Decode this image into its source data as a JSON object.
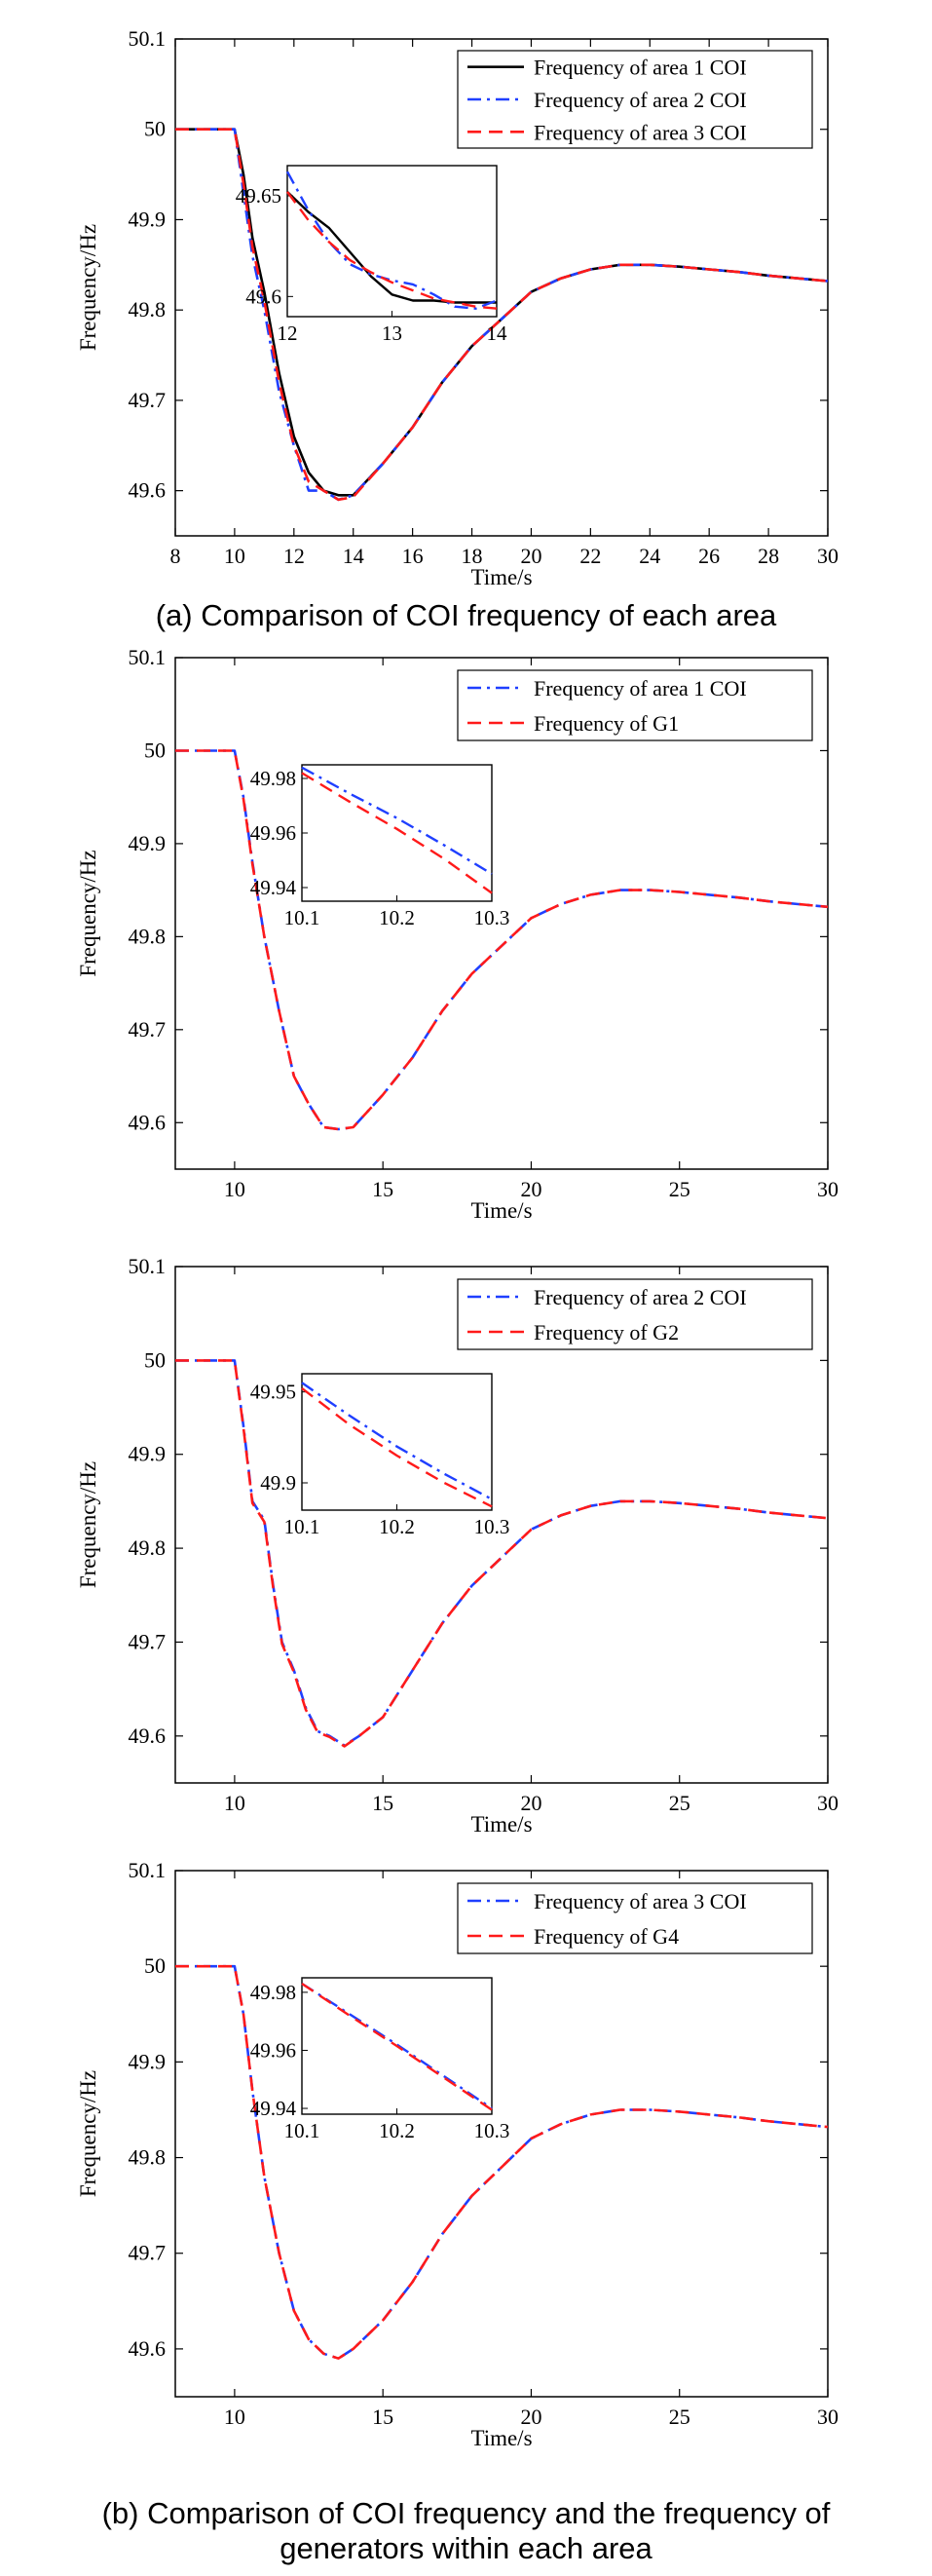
{
  "captions": {
    "a": "(a) Comparison of COI frequency of each area",
    "b_line1": "(b) Comparison of COI frequency and the frequency of",
    "b_line2": "generators within each area"
  },
  "chart_data": [
    {
      "type": "line",
      "xlabel": "Time/s",
      "ylabel": "Frequency/Hz",
      "xlim": [
        8,
        30
      ],
      "ylim": [
        49.55,
        50.1
      ],
      "xticks": [
        8,
        10,
        12,
        14,
        16,
        18,
        20,
        22,
        24,
        26,
        28,
        30
      ],
      "yticks": [
        49.6,
        49.7,
        49.8,
        49.9,
        50,
        50.1
      ],
      "legend_position": "top-right",
      "series": [
        {
          "name": "Frequency of area 1 COI",
          "color": "#000000",
          "style": "solid",
          "x": [
            8,
            10,
            10.3,
            10.6,
            11,
            11.5,
            12,
            12.5,
            13,
            13.5,
            14,
            15,
            16,
            17,
            18,
            19,
            20,
            21,
            22,
            23,
            24,
            25,
            26,
            27,
            28,
            29,
            30
          ],
          "y": [
            50.0,
            50.0,
            49.95,
            49.88,
            49.82,
            49.73,
            49.66,
            49.62,
            49.6,
            49.595,
            49.595,
            49.63,
            49.67,
            49.72,
            49.76,
            49.79,
            49.82,
            49.835,
            49.845,
            49.85,
            49.85,
            49.848,
            49.845,
            49.842,
            49.838,
            49.835,
            49.832
          ]
        },
        {
          "name": "Frequency of area 2 COI",
          "color": "#1f3fff",
          "style": "dashdot",
          "x": [
            8,
            10,
            10.3,
            10.6,
            11,
            11.5,
            12,
            12.5,
            13,
            13.5,
            14,
            15,
            16,
            17,
            18,
            19,
            20,
            21,
            22,
            23,
            24,
            25,
            26,
            27,
            28,
            29,
            30
          ],
          "y": [
            50.0,
            50.0,
            49.93,
            49.86,
            49.8,
            49.71,
            49.65,
            49.6,
            49.6,
            49.59,
            49.595,
            49.63,
            49.67,
            49.72,
            49.76,
            49.79,
            49.82,
            49.835,
            49.845,
            49.85,
            49.85,
            49.848,
            49.845,
            49.842,
            49.838,
            49.835,
            49.832
          ]
        },
        {
          "name": "Frequency of area 3 COI",
          "color": "#ff1a1a",
          "style": "dashed",
          "x": [
            8,
            10,
            10.3,
            10.6,
            11,
            11.5,
            12,
            12.5,
            13,
            13.5,
            14,
            15,
            16,
            17,
            18,
            19,
            20,
            21,
            22,
            23,
            24,
            25,
            26,
            27,
            28,
            29,
            30
          ],
          "y": [
            50.0,
            50.0,
            49.94,
            49.87,
            49.81,
            49.72,
            49.65,
            49.61,
            49.6,
            49.59,
            49.593,
            49.63,
            49.67,
            49.72,
            49.76,
            49.79,
            49.82,
            49.835,
            49.845,
            49.85,
            49.85,
            49.848,
            49.845,
            49.842,
            49.838,
            49.835,
            49.832
          ]
        }
      ],
      "inset": {
        "xlim": [
          12,
          14
        ],
        "ylim": [
          49.59,
          49.665
        ],
        "xticks": [
          12,
          13,
          14
        ],
        "yticks": [
          49.6,
          49.65
        ],
        "series": [
          {
            "x": [
              12,
              12.2,
              12.4,
              12.6,
              12.8,
              13.0,
              13.2,
              13.4,
              13.6,
              13.8,
              14.0
            ],
            "y": [
              49.652,
              49.642,
              49.634,
              49.622,
              49.61,
              49.601,
              49.598,
              49.598,
              49.597,
              49.597,
              49.597
            ]
          },
          {
            "x": [
              12,
              12.2,
              12.4,
              12.6,
              12.8,
              13.0,
              13.2,
              13.4,
              13.6,
              13.8,
              14.0
            ],
            "y": [
              49.662,
              49.643,
              49.627,
              49.616,
              49.611,
              49.608,
              49.606,
              49.601,
              49.595,
              49.594,
              49.598
            ]
          },
          {
            "x": [
              12,
              12.2,
              12.4,
              12.6,
              12.8,
              13.0,
              13.2,
              13.4,
              13.6,
              13.8,
              14.0
            ],
            "y": [
              49.652,
              49.638,
              49.627,
              49.618,
              49.612,
              49.607,
              49.603,
              49.599,
              49.597,
              49.595,
              49.594
            ]
          }
        ]
      }
    },
    {
      "type": "line",
      "xlabel": "Time/s",
      "ylabel": "Frequency/Hz",
      "xlim": [
        8,
        30
      ],
      "ylim": [
        49.55,
        50.1
      ],
      "xticks": [
        10,
        15,
        20,
        25,
        30
      ],
      "yticks": [
        49.6,
        49.7,
        49.8,
        49.9,
        50,
        50.1
      ],
      "legend_position": "top-right",
      "series": [
        {
          "name": "Frequency of area 1 COI",
          "color": "#1f3fff",
          "style": "dashdot",
          "x": [
            8,
            10,
            10.3,
            10.6,
            11,
            11.5,
            12,
            12.5,
            13,
            13.5,
            14,
            15,
            16,
            17,
            18,
            19,
            20,
            21,
            22,
            23,
            24,
            25,
            26,
            27,
            28,
            29,
            30
          ],
          "y": [
            50.0,
            50.0,
            49.95,
            49.88,
            49.8,
            49.72,
            49.65,
            49.62,
            49.595,
            49.593,
            49.595,
            49.63,
            49.67,
            49.72,
            49.76,
            49.79,
            49.82,
            49.835,
            49.845,
            49.85,
            49.85,
            49.848,
            49.845,
            49.842,
            49.838,
            49.835,
            49.832
          ]
        },
        {
          "name": "Frequency of G1",
          "color": "#ff1a1a",
          "style": "dashed",
          "x": [
            8,
            10,
            10.3,
            10.6,
            11,
            11.5,
            12,
            12.5,
            13,
            13.5,
            14,
            15,
            16,
            17,
            18,
            19,
            20,
            21,
            22,
            23,
            24,
            25,
            26,
            27,
            28,
            29,
            30
          ],
          "y": [
            50.0,
            50.0,
            49.948,
            49.878,
            49.8,
            49.72,
            49.65,
            49.62,
            49.595,
            49.593,
            49.595,
            49.63,
            49.67,
            49.72,
            49.76,
            49.79,
            49.82,
            49.835,
            49.845,
            49.85,
            49.85,
            49.848,
            49.845,
            49.842,
            49.838,
            49.835,
            49.832
          ]
        }
      ],
      "inset": {
        "xlim": [
          10.1,
          10.3
        ],
        "ylim": [
          49.935,
          49.985
        ],
        "xticks": [
          10.1,
          10.2,
          10.3
        ],
        "yticks": [
          49.94,
          49.96,
          49.98
        ],
        "series": [
          {
            "x": [
              10.1,
              10.15,
              10.2,
              10.25,
              10.3
            ],
            "y": [
              49.984,
              49.9745,
              49.9655,
              49.9555,
              49.945
            ]
          },
          {
            "x": [
              10.1,
              10.15,
              10.2,
              10.25,
              10.3
            ],
            "y": [
              49.982,
              49.9715,
              49.9615,
              49.9505,
              49.938
            ]
          }
        ]
      }
    },
    {
      "type": "line",
      "xlabel": "Time/s",
      "ylabel": "Frequency/Hz",
      "xlim": [
        8,
        30
      ],
      "ylim": [
        49.55,
        50.1
      ],
      "xticks": [
        10,
        15,
        20,
        25,
        30
      ],
      "yticks": [
        49.6,
        49.7,
        49.8,
        49.9,
        50,
        50.1
      ],
      "legend_position": "top-right",
      "series": [
        {
          "name": "Frequency of area 2 COI",
          "color": "#1f3fff",
          "style": "dashdot",
          "x": [
            8,
            10,
            10.3,
            10.6,
            11,
            11.3,
            11.6,
            12,
            12.4,
            12.8,
            13.2,
            13.7,
            14.2,
            15,
            16,
            17,
            18,
            19,
            20,
            21,
            22,
            23,
            24,
            25,
            26,
            27,
            28,
            29,
            30
          ],
          "y": [
            50.0,
            50.0,
            49.93,
            49.85,
            49.83,
            49.76,
            49.7,
            49.67,
            49.63,
            49.605,
            49.6,
            49.59,
            49.6,
            49.62,
            49.67,
            49.72,
            49.76,
            49.79,
            49.82,
            49.835,
            49.845,
            49.85,
            49.85,
            49.848,
            49.845,
            49.842,
            49.838,
            49.835,
            49.832
          ]
        },
        {
          "name": "Frequency of G2",
          "color": "#ff1a1a",
          "style": "dashed",
          "x": [
            8,
            10,
            10.3,
            10.6,
            11,
            11.3,
            11.6,
            12,
            12.4,
            12.8,
            13.2,
            13.7,
            14.2,
            15,
            16,
            17,
            18,
            19,
            20,
            21,
            22,
            23,
            24,
            25,
            26,
            27,
            28,
            29,
            30
          ],
          "y": [
            50.0,
            50.0,
            49.928,
            49.848,
            49.828,
            49.758,
            49.698,
            49.668,
            49.628,
            49.604,
            49.599,
            49.589,
            49.6,
            49.62,
            49.67,
            49.72,
            49.76,
            49.79,
            49.82,
            49.835,
            49.845,
            49.85,
            49.85,
            49.848,
            49.845,
            49.842,
            49.838,
            49.835,
            49.832
          ]
        }
      ],
      "inset": {
        "xlim": [
          10.1,
          10.3
        ],
        "ylim": [
          49.885,
          49.96
        ],
        "xticks": [
          10.1,
          10.2,
          10.3
        ],
        "yticks": [
          49.9,
          49.95
        ],
        "series": [
          {
            "x": [
              10.1,
              10.15,
              10.2,
              10.25,
              10.3
            ],
            "y": [
              49.955,
              49.937,
              49.92,
              49.905,
              49.891
            ]
          },
          {
            "x": [
              10.1,
              10.15,
              10.2,
              10.25,
              10.3
            ],
            "y": [
              49.952,
              49.932,
              49.915,
              49.9,
              49.887
            ]
          }
        ]
      }
    },
    {
      "type": "line",
      "xlabel": "Time/s",
      "ylabel": "Frequency/Hz",
      "xlim": [
        8,
        30
      ],
      "ylim": [
        49.55,
        50.1
      ],
      "xticks": [
        10,
        15,
        20,
        25,
        30
      ],
      "yticks": [
        49.6,
        49.7,
        49.8,
        49.9,
        50,
        50.1
      ],
      "legend_position": "top-right",
      "series": [
        {
          "name": "Frequency of area 3 COI",
          "color": "#1f3fff",
          "style": "dashdot",
          "x": [
            8,
            10,
            10.3,
            10.6,
            11,
            11.5,
            12,
            12.5,
            13,
            13.5,
            14,
            15,
            16,
            17,
            18,
            19,
            20,
            21,
            22,
            23,
            24,
            25,
            26,
            27,
            28,
            29,
            30
          ],
          "y": [
            50.0,
            50.0,
            49.95,
            49.87,
            49.78,
            49.7,
            49.64,
            49.61,
            49.595,
            49.59,
            49.6,
            49.63,
            49.67,
            49.72,
            49.76,
            49.79,
            49.82,
            49.835,
            49.845,
            49.85,
            49.85,
            49.848,
            49.845,
            49.842,
            49.838,
            49.835,
            49.832
          ]
        },
        {
          "name": "Frequency of G4",
          "color": "#ff1a1a",
          "style": "dashed",
          "x": [
            8,
            10,
            10.3,
            10.6,
            11,
            11.5,
            12,
            12.5,
            13,
            13.5,
            14,
            15,
            16,
            17,
            18,
            19,
            20,
            21,
            22,
            23,
            24,
            25,
            26,
            27,
            28,
            29,
            30
          ],
          "y": [
            50.0,
            50.0,
            49.95,
            49.87,
            49.78,
            49.7,
            49.64,
            49.61,
            49.595,
            49.59,
            49.6,
            49.63,
            49.67,
            49.72,
            49.76,
            49.79,
            49.82,
            49.835,
            49.845,
            49.85,
            49.85,
            49.848,
            49.845,
            49.842,
            49.838,
            49.835,
            49.832
          ]
        }
      ],
      "inset": {
        "xlim": [
          10.1,
          10.3
        ],
        "ylim": [
          49.938,
          49.985
        ],
        "xticks": [
          10.1,
          10.2,
          10.3
        ],
        "yticks": [
          49.94,
          49.96,
          49.98
        ],
        "series": [
          {
            "x": [
              10.1,
              10.15,
              10.2,
              10.25,
              10.3
            ],
            "y": [
              49.983,
              49.9725,
              49.962,
              49.951,
              49.94
            ]
          },
          {
            "x": [
              10.1,
              10.15,
              10.2,
              10.25,
              10.3
            ],
            "y": [
              49.983,
              49.972,
              49.9615,
              49.9505,
              49.9395
            ]
          }
        ]
      }
    }
  ]
}
